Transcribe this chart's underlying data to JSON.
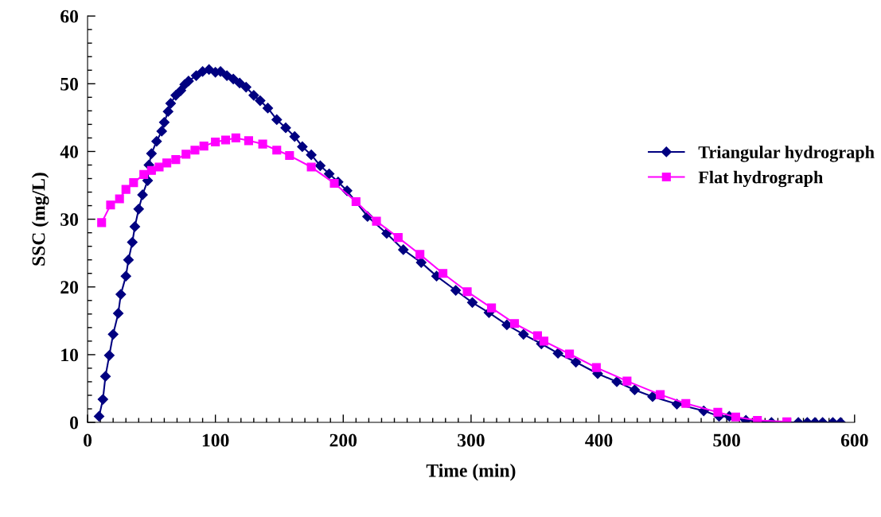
{
  "chart_data": {
    "type": "line",
    "xlabel": "Time (min)",
    "ylabel": "SSC (mg/L)",
    "xlim": [
      0,
      600
    ],
    "ylim": [
      0,
      60
    ],
    "xticks": [
      0,
      {
        "value": 10,
        "label": null
      },
      {
        "value": 20,
        "label": null
      },
      {
        "value": 30,
        "label": null
      },
      {
        "value": 40,
        "label": null
      },
      {
        "value": 50,
        "label": null
      },
      {
        "value": 60,
        "label": null
      },
      {
        "value": 70,
        "label": null
      },
      {
        "value": 80,
        "label": null
      },
      {
        "value": 90,
        "label": null
      },
      100,
      {
        "value": 110,
        "label": null
      },
      {
        "value": 120,
        "label": null
      },
      {
        "value": 130,
        "label": null
      },
      {
        "value": 140,
        "label": null
      },
      {
        "value": 150,
        "label": null
      },
      {
        "value": 160,
        "label": null
      },
      {
        "value": 170,
        "label": null
      },
      {
        "value": 180,
        "label": null
      },
      {
        "value": 190,
        "label": null
      },
      200,
      {
        "value": 210,
        "label": null
      },
      {
        "value": 220,
        "label": null
      },
      {
        "value": 230,
        "label": null
      },
      {
        "value": 240,
        "label": null
      },
      {
        "value": 250,
        "label": null
      },
      {
        "value": 260,
        "label": null
      },
      {
        "value": 270,
        "label": null
      },
      {
        "value": 280,
        "label": null
      },
      {
        "value": 290,
        "label": null
      },
      300,
      {
        "value": 310,
        "label": null
      },
      {
        "value": 320,
        "label": null
      },
      {
        "value": 330,
        "label": null
      },
      {
        "value": 340,
        "label": null
      },
      {
        "value": 350,
        "label": null
      },
      {
        "value": 360,
        "label": null
      },
      {
        "value": 370,
        "label": null
      },
      {
        "value": 380,
        "label": null
      },
      {
        "value": 390,
        "label": null
      },
      400,
      {
        "value": 410,
        "label": null
      },
      {
        "value": 420,
        "label": null
      },
      {
        "value": 430,
        "label": null
      },
      {
        "value": 440,
        "label": null
      },
      {
        "value": 450,
        "label": null
      },
      {
        "value": 460,
        "label": null
      },
      {
        "value": 470,
        "label": null
      },
      {
        "value": 480,
        "label": null
      },
      {
        "value": 490,
        "label": null
      },
      500,
      {
        "value": 510,
        "label": null
      },
      {
        "value": 520,
        "label": null
      },
      {
        "value": 530,
        "label": null
      },
      {
        "value": 540,
        "label": null
      },
      {
        "value": 550,
        "label": null
      },
      {
        "value": 560,
        "label": null
      },
      {
        "value": 570,
        "label": null
      },
      {
        "value": 580,
        "label": null
      },
      {
        "value": 590,
        "label": null
      },
      600
    ],
    "yticks": [
      0,
      {
        "value": 2,
        "label": null
      },
      {
        "value": 4,
        "label": null
      },
      {
        "value": 6,
        "label": null
      },
      {
        "value": 8,
        "label": null
      },
      10,
      {
        "value": 12,
        "label": null
      },
      {
        "value": 14,
        "label": null
      },
      {
        "value": 16,
        "label": null
      },
      {
        "value": 18,
        "label": null
      },
      20,
      {
        "value": 22,
        "label": null
      },
      {
        "value": 24,
        "label": null
      },
      {
        "value": 26,
        "label": null
      },
      {
        "value": 28,
        "label": null
      },
      30,
      {
        "value": 32,
        "label": null
      },
      {
        "value": 34,
        "label": null
      },
      {
        "value": 36,
        "label": null
      },
      {
        "value": 38,
        "label": null
      },
      40,
      {
        "value": 42,
        "label": null
      },
      {
        "value": 44,
        "label": null
      },
      {
        "value": 46,
        "label": null
      },
      {
        "value": 48,
        "label": null
      },
      50,
      {
        "value": 52,
        "label": null
      },
      {
        "value": 54,
        "label": null
      },
      {
        "value": 56,
        "label": null
      },
      {
        "value": 58,
        "label": null
      },
      60
    ],
    "grid": false,
    "legend": "right",
    "line_style": "solid",
    "series": [
      {
        "name": "Triangular hydrograph",
        "color": "#000080",
        "marker": "diamond",
        "x": [
          9,
          12,
          14,
          17,
          20,
          24,
          26,
          30,
          32,
          35,
          37,
          40,
          43,
          47,
          48,
          50,
          54,
          58,
          60,
          63,
          65,
          69,
          73,
          76,
          79,
          85,
          90,
          95,
          100,
          104,
          109,
          114,
          119,
          124,
          130,
          135,
          141,
          148,
          155,
          162,
          168,
          175,
          182,
          189,
          196,
          203,
          219,
          234,
          247,
          261,
          273,
          288,
          301,
          314,
          328,
          341,
          355,
          368,
          382,
          399,
          414,
          428,
          442,
          461,
          482,
          494,
          502,
          515,
          535,
          556,
          563,
          569,
          575,
          583,
          589
        ],
        "values": [
          0.9,
          3.4,
          6.8,
          9.9,
          13.0,
          16.1,
          18.9,
          21.6,
          24.0,
          26.6,
          28.9,
          31.5,
          33.6,
          35.7,
          38.0,
          39.7,
          41.5,
          43.0,
          44.3,
          45.9,
          47.1,
          48.3,
          49.0,
          49.9,
          50.4,
          51.2,
          51.8,
          52.1,
          51.7,
          51.8,
          51.2,
          50.7,
          50.1,
          49.5,
          48.3,
          47.5,
          46.4,
          44.7,
          43.5,
          42.2,
          40.7,
          39.5,
          37.9,
          36.7,
          35.5,
          34.2,
          30.4,
          27.9,
          25.5,
          23.6,
          21.6,
          19.5,
          17.7,
          16.2,
          14.4,
          13.0,
          11.6,
          10.2,
          8.9,
          7.2,
          6.0,
          4.8,
          3.8,
          2.7,
          1.7,
          0.9,
          0.9,
          0.3,
          0.0,
          0.0,
          0.0,
          0.0,
          0.0,
          0.0,
          0.0
        ]
      },
      {
        "name": "Flat hydrograph",
        "color": "#ff00ff",
        "marker": "square",
        "x": [
          11,
          18,
          25,
          30,
          36,
          44,
          50,
          56,
          62,
          69,
          77,
          84,
          91,
          100,
          108,
          116,
          126,
          137,
          148,
          158,
          175,
          193,
          210,
          226,
          243,
          260,
          278,
          297,
          316,
          334,
          352,
          357,
          377,
          398,
          422,
          448,
          468,
          493,
          507,
          524,
          547
        ],
        "values": [
          29.5,
          32.1,
          33.0,
          34.4,
          35.4,
          36.6,
          37.2,
          37.7,
          38.3,
          38.8,
          39.6,
          40.2,
          40.8,
          41.4,
          41.7,
          42.0,
          41.6,
          41.1,
          40.2,
          39.4,
          37.7,
          35.3,
          32.6,
          29.7,
          27.3,
          24.8,
          22.0,
          19.3,
          16.9,
          14.6,
          12.8,
          12.0,
          10.1,
          8.1,
          6.1,
          4.1,
          2.8,
          1.5,
          0.8,
          0.3,
          0.1
        ]
      }
    ]
  }
}
